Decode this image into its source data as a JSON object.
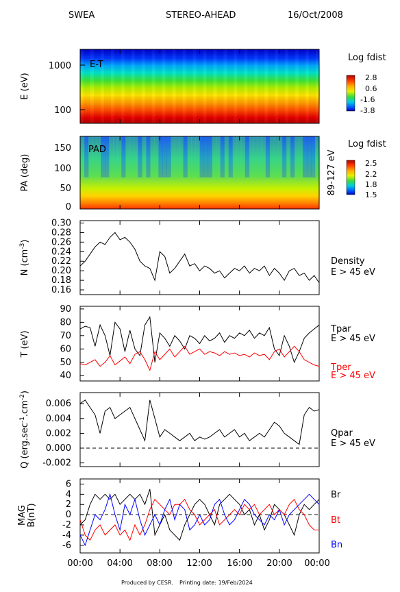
{
  "header": {
    "instrument": "SWEA",
    "spacecraft": "STEREO-AHEAD",
    "date": "16/Oct/2008"
  },
  "footer": {
    "produced_by": "Produced by CESR.",
    "printing_date": "Printing date: 19/Feb/2024"
  },
  "colors": {
    "black": "#000000",
    "red": "#ff0000",
    "blue": "#0000ff"
  },
  "x_ticks": [
    "00:00",
    "04:00",
    "08:00",
    "12:00",
    "16:00",
    "20:00",
    "00:00"
  ],
  "chart_data": [
    {
      "type": "heatmap",
      "ylabel": "E (eV)",
      "y_scale": "log",
      "y_ticks": [
        "1000",
        "100"
      ],
      "panel_label": "E-T",
      "colorbar": {
        "title": "Log fdist",
        "ticks": [
          "2.8",
          "0.6",
          "-1.6",
          "-3.8"
        ],
        "range": [
          -3.8,
          2.8
        ]
      },
      "description": "energy-time spectrogram, horizontal color bands from red (low energy) to blue (high energy)"
    },
    {
      "type": "heatmap",
      "ylabel": "PA (deg)",
      "y_ticks": [
        "150",
        "100",
        "50",
        "0"
      ],
      "ylim": [
        0,
        180
      ],
      "panel_label": "PAD",
      "right_label": "89-127 eV",
      "colorbar": {
        "title": "Log fdist",
        "ticks": [
          "2.5",
          "2.2",
          "1.8",
          "1.5"
        ],
        "range": [
          1.5,
          2.5
        ]
      }
    },
    {
      "type": "line",
      "ylabel": "N (cm",
      "ylabel_sup": "-3",
      "ylabel_end": ")",
      "ylim": [
        0.15,
        0.305
      ],
      "y_ticks": [
        "0.30",
        "0.28",
        "0.26",
        "0.24",
        "0.22",
        "0.20",
        "0.18",
        "0.16"
      ],
      "y_tick_values": [
        0.3,
        0.28,
        0.26,
        0.24,
        0.22,
        0.2,
        0.18,
        0.16
      ],
      "series": [
        {
          "name": "Density",
          "sub": "E > 45 eV",
          "color": "#000000",
          "x": [
            0,
            0.5,
            1,
            1.5,
            2,
            2.5,
            3,
            3.5,
            4,
            4.5,
            5,
            5.5,
            6,
            6.5,
            7,
            7.5,
            8,
            8.5,
            9,
            9.5,
            10,
            10.5,
            11,
            11.5,
            12,
            12.5,
            13,
            13.5,
            14,
            14.5,
            15,
            15.5,
            16,
            16.5,
            17,
            17.5,
            18,
            18.5,
            19,
            19.5,
            20,
            20.5,
            21,
            21.5,
            22,
            22.5,
            23,
            23.5,
            24
          ],
          "y": [
            0.21,
            0.22,
            0.235,
            0.25,
            0.26,
            0.255,
            0.27,
            0.28,
            0.265,
            0.27,
            0.26,
            0.245,
            0.22,
            0.21,
            0.205,
            0.18,
            0.24,
            0.23,
            0.195,
            0.205,
            0.22,
            0.235,
            0.21,
            0.215,
            0.2,
            0.21,
            0.205,
            0.195,
            0.2,
            0.185,
            0.195,
            0.205,
            0.2,
            0.21,
            0.195,
            0.205,
            0.2,
            0.21,
            0.19,
            0.205,
            0.195,
            0.18,
            0.2,
            0.205,
            0.19,
            0.195,
            0.18,
            0.19,
            0.175
          ]
        }
      ]
    },
    {
      "type": "line",
      "ylabel": "T (eV)",
      "ylim": [
        36,
        92
      ],
      "y_ticks": [
        "90",
        "80",
        "70",
        "60",
        "50",
        "40"
      ],
      "y_tick_values": [
        90,
        80,
        70,
        60,
        50,
        40
      ],
      "series": [
        {
          "name": "Tpar",
          "sub": "E > 45 eV",
          "color": "#000000",
          "x": [
            0,
            0.5,
            1,
            1.5,
            2,
            2.5,
            3,
            3.5,
            4,
            4.5,
            5,
            5.5,
            6,
            6.5,
            7,
            7.5,
            8,
            8.5,
            9,
            9.5,
            10,
            10.5,
            11,
            11.5,
            12,
            12.5,
            13,
            13.5,
            14,
            14.5,
            15,
            15.5,
            16,
            16.5,
            17,
            17.5,
            18,
            18.5,
            19,
            19.5,
            20,
            20.5,
            21,
            21.5,
            22,
            22.5,
            23,
            23.5,
            24
          ],
          "y": [
            75,
            77,
            76,
            62,
            78,
            70,
            55,
            80,
            75,
            58,
            74,
            60,
            55,
            78,
            84,
            50,
            72,
            68,
            62,
            70,
            66,
            60,
            70,
            68,
            64,
            70,
            66,
            68,
            72,
            65,
            70,
            68,
            72,
            70,
            74,
            68,
            72,
            70,
            76,
            60,
            55,
            70,
            62,
            50,
            58,
            68,
            72,
            75,
            78
          ]
        },
        {
          "name": "Tper",
          "sub": "E > 45 eV",
          "color": "#ff0000",
          "x": [
            0,
            0.5,
            1,
            1.5,
            2,
            2.5,
            3,
            3.5,
            4,
            4.5,
            5,
            5.5,
            6,
            6.5,
            7,
            7.5,
            8,
            8.5,
            9,
            9.5,
            10,
            10.5,
            11,
            11.5,
            12,
            12.5,
            13,
            13.5,
            14,
            14.5,
            15,
            15.5,
            16,
            16.5,
            17,
            17.5,
            18,
            18.5,
            19,
            19.5,
            20,
            20.5,
            21,
            21.5,
            22,
            22.5,
            23,
            23.5,
            24
          ],
          "y": [
            49,
            48,
            50,
            52,
            47,
            50,
            55,
            48,
            51,
            54,
            49,
            56,
            58,
            52,
            44,
            58,
            52,
            56,
            60,
            54,
            58,
            62,
            56,
            58,
            60,
            56,
            58,
            57,
            55,
            58,
            56,
            57,
            55,
            56,
            54,
            57,
            55,
            56,
            52,
            58,
            60,
            54,
            58,
            62,
            58,
            52,
            50,
            48,
            47
          ]
        }
      ]
    },
    {
      "type": "line",
      "ylabel": "Q (erg.sec",
      "ylabel_sup1": "-1",
      "ylabel_mid": ".cm",
      "ylabel_sup2": "-2",
      "ylabel_end": ")",
      "ylim": [
        -0.0025,
        0.0075
      ],
      "y_ticks": [
        "0.006",
        "0.004",
        "0.002",
        "0.000",
        "-0.002"
      ],
      "y_tick_values": [
        0.006,
        0.004,
        0.002,
        0.0,
        -0.002
      ],
      "zero_line": true,
      "series": [
        {
          "name": "Qpar",
          "sub": "E > 45 eV",
          "color": "#000000",
          "x": [
            0,
            0.5,
            1,
            1.5,
            2,
            2.5,
            3,
            3.5,
            4,
            4.5,
            5,
            5.5,
            6,
            6.5,
            7,
            7.5,
            8,
            8.5,
            9,
            9.5,
            10,
            10.5,
            11,
            11.5,
            12,
            12.5,
            13,
            13.5,
            14,
            14.5,
            15,
            15.5,
            16,
            16.5,
            17,
            17.5,
            18,
            18.5,
            19,
            19.5,
            20,
            20.5,
            21,
            21.5,
            22,
            22.5,
            23,
            23.5,
            24
          ],
          "y": [
            0.006,
            0.0065,
            0.0055,
            0.0045,
            0.002,
            0.005,
            0.0055,
            0.004,
            0.0045,
            0.005,
            0.0055,
            0.004,
            0.0025,
            0.001,
            0.0065,
            0.004,
            0.0015,
            0.0025,
            0.002,
            0.0015,
            0.001,
            0.0015,
            0.002,
            0.001,
            0.0015,
            0.0012,
            0.0015,
            0.002,
            0.0025,
            0.0015,
            0.002,
            0.0025,
            0.0015,
            0.002,
            0.001,
            0.0015,
            0.002,
            0.0015,
            0.0025,
            0.0035,
            0.003,
            0.002,
            0.0015,
            0.001,
            0.0005,
            0.0045,
            0.0055,
            0.005,
            0.0052
          ]
        }
      ]
    },
    {
      "type": "line",
      "ylabel": "MAG",
      "ylabel2": "B(nT)",
      "ylim": [
        -7.5,
        7
      ],
      "y_ticks": [
        "6",
        "4",
        "2",
        "0",
        "-2",
        "-4",
        "-6"
      ],
      "y_tick_values": [
        6,
        4,
        2,
        0,
        -2,
        -4,
        -6
      ],
      "zero_line": true,
      "series": [
        {
          "name": "Br",
          "color": "#000000",
          "x": [
            0,
            0.5,
            1,
            1.5,
            2,
            2.5,
            3,
            3.5,
            4,
            4.5,
            5,
            5.5,
            6,
            6.5,
            7,
            7.5,
            8,
            8.5,
            9,
            9.5,
            10,
            10.5,
            11,
            11.5,
            12,
            12.5,
            13,
            13.5,
            14,
            14.5,
            15,
            15.5,
            16,
            16.5,
            17,
            17.5,
            18,
            18.5,
            19,
            19.5,
            20,
            20.5,
            21,
            21.5,
            22,
            22.5,
            23,
            23.5,
            24
          ],
          "y": [
            -2,
            -1,
            2,
            4,
            3,
            4,
            3,
            4,
            2,
            3,
            4,
            3,
            4,
            2,
            5,
            -4,
            -2,
            0,
            -3,
            -4,
            -5,
            -2,
            0,
            2,
            3,
            2,
            0,
            -2,
            2,
            3,
            4,
            3,
            2,
            0,
            1,
            -2,
            0,
            -3,
            -1,
            2,
            1,
            0,
            -2,
            -4,
            0,
            2,
            1,
            2,
            3
          ]
        },
        {
          "name": "Bt",
          "color": "#ff0000",
          "x": [
            0,
            0.5,
            1,
            1.5,
            2,
            2.5,
            3,
            3.5,
            4,
            4.5,
            5,
            5.5,
            6,
            6.5,
            7,
            7.5,
            8,
            8.5,
            9,
            9.5,
            10,
            10.5,
            11,
            11.5,
            12,
            12.5,
            13,
            13.5,
            14,
            14.5,
            15,
            15.5,
            16,
            16.5,
            17,
            17.5,
            18,
            18.5,
            19,
            19.5,
            20,
            20.5,
            21,
            21.5,
            22,
            22.5,
            23,
            23.5,
            24
          ],
          "y": [
            -1,
            -4,
            -5,
            -3,
            -2,
            -4,
            -3,
            -2,
            -4,
            -3,
            -5,
            -2,
            -4,
            -2,
            1,
            3,
            2,
            1,
            0,
            2,
            2,
            3,
            1,
            0,
            -2,
            -1,
            0,
            1,
            -2,
            -1,
            0,
            1,
            0,
            2,
            1,
            2,
            0,
            1,
            2,
            0,
            1,
            0,
            2,
            3,
            1,
            0,
            -2,
            -3,
            -3
          ]
        },
        {
          "name": "Bn",
          "color": "#0000ff",
          "x": [
            0,
            0.5,
            1,
            1.5,
            2,
            2.5,
            3,
            3.5,
            4,
            4.5,
            5,
            5.5,
            6,
            6.5,
            7,
            7.5,
            8,
            8.5,
            9,
            9.5,
            10,
            10.5,
            11,
            11.5,
            12,
            12.5,
            13,
            13.5,
            14,
            14.5,
            15,
            15.5,
            16,
            16.5,
            17,
            17.5,
            18,
            18.5,
            19,
            19.5,
            20,
            20.5,
            21,
            21.5,
            22,
            22.5,
            23,
            23.5,
            24
          ],
          "y": [
            -4,
            -6,
            -3,
            0,
            -1,
            1,
            4,
            0,
            -3,
            2,
            0,
            3,
            -1,
            -4,
            -2,
            0,
            -2,
            1,
            3,
            -1,
            2,
            1,
            -3,
            -2,
            0,
            -2,
            -1,
            2,
            3,
            0,
            -2,
            -1,
            1,
            3,
            2,
            0,
            -1,
            -2,
            0,
            -1,
            1,
            -2,
            0,
            1,
            2,
            3,
            4,
            3,
            2
          ]
        }
      ]
    }
  ]
}
